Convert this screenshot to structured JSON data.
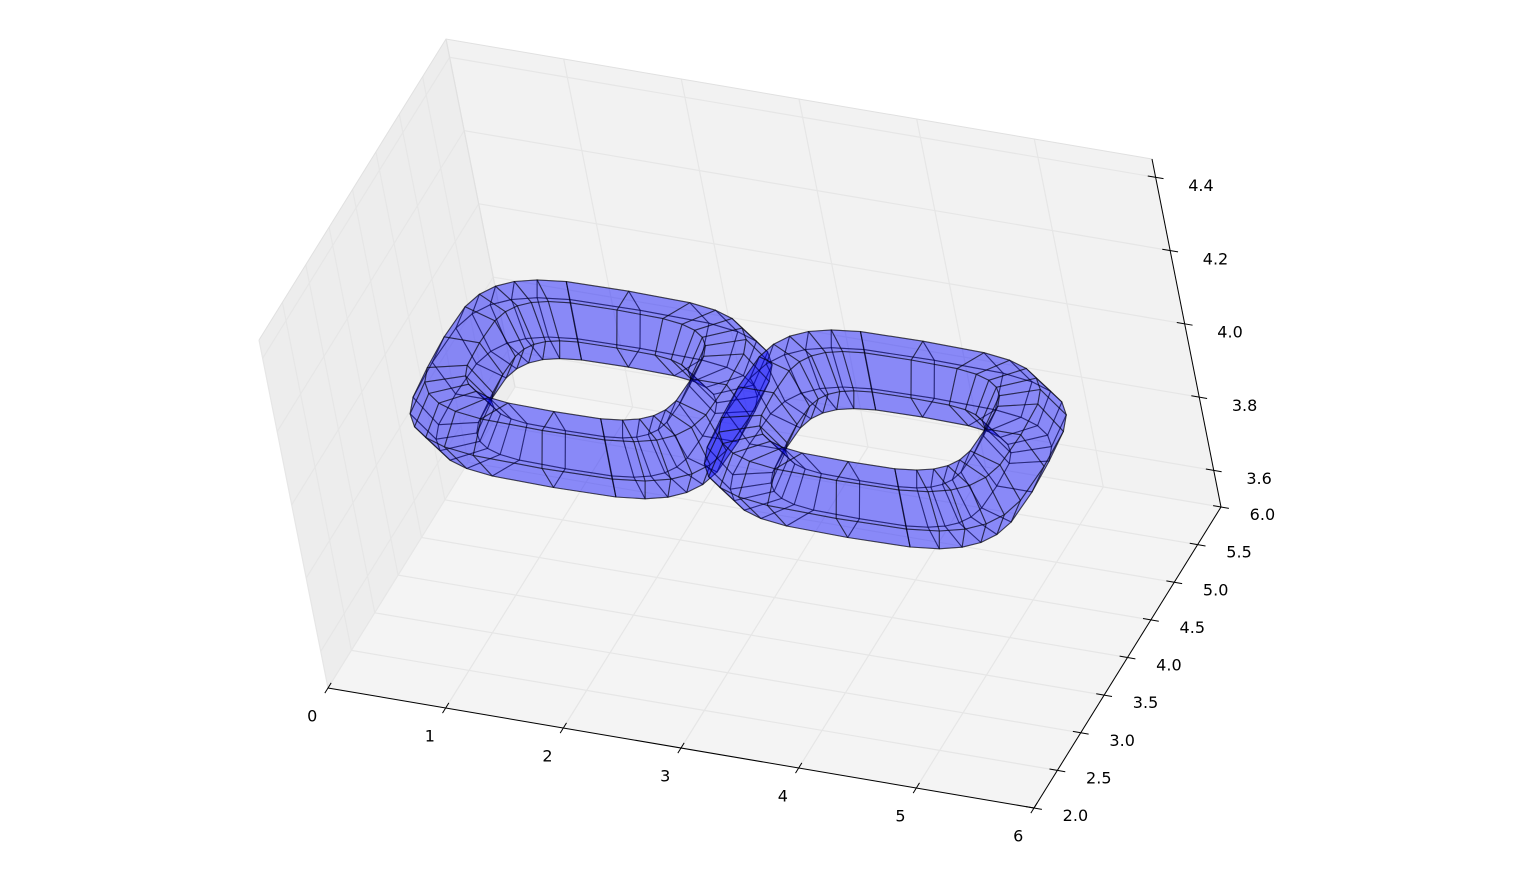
{
  "chart_data": {
    "type": "3d-surface",
    "title": "",
    "xlabel": "",
    "ylabel": "",
    "zlabel": "",
    "grid": true,
    "xlim": [
      0,
      6
    ],
    "ylim": [
      2.0,
      6.0
    ],
    "zlim": [
      3.5,
      4.45
    ],
    "x_ticks": [
      "0",
      "1",
      "2",
      "3",
      "4",
      "5",
      "6"
    ],
    "y_ticks": [
      "2.0",
      "2.5",
      "3.0",
      "3.5",
      "4.0",
      "4.5",
      "5.0",
      "5.5",
      "6.0"
    ],
    "z_ticks": [
      "3.6",
      "3.8",
      "4.0",
      "4.2",
      "4.4"
    ],
    "surface": {
      "shape": "double torus",
      "face_color": "#0000ff",
      "face_alpha": 0.45,
      "edge_color": "#000000",
      "hole_centers": [
        [
          1.75,
          4.0
        ],
        [
          4.25,
          4.0
        ]
      ],
      "hole_half_widths": [
        0.75,
        0.55
      ],
      "outer_half_widths": [
        1.35,
        1.05
      ],
      "z_center": 4.0
    },
    "colors": {
      "pane": "#f2f2f2",
      "grid": "#e6e6e6",
      "axis": "#000000"
    }
  }
}
